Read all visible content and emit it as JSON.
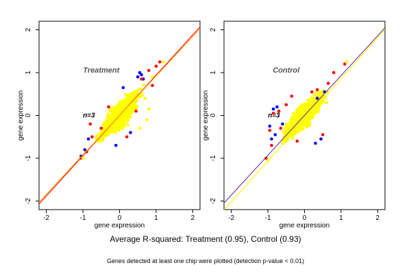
{
  "chart_data": [
    {
      "type": "scatter",
      "title": "Treatment",
      "annotation": "n=3",
      "xlabel": "gene expression",
      "ylabel": "gene expression",
      "xlim": [
        -2.2,
        2.2
      ],
      "ylim": [
        -2.2,
        2.2
      ],
      "xticks": [
        -2,
        -1,
        0,
        1,
        2
      ],
      "yticks": [
        -2,
        -1,
        0,
        1,
        2
      ],
      "grid": false,
      "cloud": {
        "x_range": [
          -1.1,
          1.25
        ],
        "y_range": [
          -1.05,
          1.3
        ],
        "slope": 0.95
      },
      "series": [
        {
          "color": "#0000ff",
          "x": [
            -1.05,
            -0.95,
            -0.85,
            0.55,
            0.6,
            0.5,
            0.1,
            -0.1,
            0.3,
            0.65
          ],
          "y": [
            -0.95,
            -0.8,
            -0.55,
            1.0,
            0.95,
            0.9,
            0.65,
            -0.7,
            -0.4,
            0.85
          ]
        },
        {
          "color": "#ff0000",
          "x": [
            -1.05,
            -0.9,
            -0.75,
            -0.5,
            -0.3,
            0.2,
            0.45,
            0.6,
            0.8,
            1.0,
            1.1,
            -0.8,
            0.9
          ],
          "y": [
            -1.0,
            -0.85,
            -0.5,
            -0.3,
            0.2,
            -0.5,
            0.1,
            0.85,
            1.05,
            1.15,
            1.25,
            -0.2,
            0.7
          ]
        },
        {
          "color": "#ffff00",
          "x": [
            -1.0,
            1.2,
            0.75,
            0.8,
            0.55,
            0.7,
            0.9
          ],
          "y": [
            -1.0,
            1.25,
            -0.1,
            0.15,
            -0.3,
            0.4,
            0.9
          ]
        }
      ],
      "fit_lines": [
        {
          "color": "#ff0000",
          "intercept": 0.0,
          "slope": 0.94
        },
        {
          "color": "#ffa500",
          "intercept": 0.0,
          "slope": 0.92
        }
      ]
    },
    {
      "type": "scatter",
      "title": "Control",
      "annotation": "n=3",
      "xlabel": "gene expression",
      "ylabel": "gene expression",
      "xlim": [
        -2.2,
        2.2
      ],
      "ylim": [
        -2.2,
        2.2
      ],
      "xticks": [
        -2,
        -1,
        0,
        1,
        2
      ],
      "yticks": [
        -2,
        -1,
        0,
        1,
        2
      ],
      "grid": false,
      "cloud": {
        "x_range": [
          -1.1,
          1.25
        ],
        "y_range": [
          -1.1,
          1.3
        ],
        "slope": 0.95
      },
      "series": [
        {
          "color": "#0000ff",
          "x": [
            -0.95,
            -0.85,
            -0.75,
            -0.8,
            -0.6,
            0.3,
            0.45,
            0.35,
            0.55,
            -0.9
          ],
          "y": [
            -0.25,
            0.15,
            0.2,
            -0.45,
            -0.2,
            -0.65,
            -0.55,
            0.4,
            0.55,
            -0.55
          ]
        },
        {
          "color": "#ff0000",
          "x": [
            -1.05,
            -0.95,
            -0.85,
            -0.9,
            -0.7,
            -0.65,
            -0.5,
            0.2,
            0.35,
            0.5,
            0.65,
            0.8,
            1.1,
            -0.2,
            -0.35
          ],
          "y": [
            -1.0,
            -0.35,
            0.05,
            -0.7,
            0.1,
            -0.3,
            0.25,
            0.55,
            0.6,
            -0.45,
            0.75,
            1.0,
            1.2,
            -0.6,
            0.45
          ]
        },
        {
          "color": "#ffff00",
          "x": [
            -1.0,
            1.15,
            0.6,
            -0.5
          ],
          "y": [
            -1.05,
            1.25,
            0.3,
            -0.2
          ]
        }
      ],
      "fit_lines": [
        {
          "color": "#ffff00",
          "intercept": -0.1,
          "slope": 0.96
        },
        {
          "color": "#7030a0",
          "intercept": 0.0,
          "slope": 0.93
        }
      ]
    }
  ],
  "caption": "Average R-squared: Treatment (0.95), Control (0.93)",
  "footnote": "Genes detected at least one chip were plotted (detection p-value < 0.01)"
}
